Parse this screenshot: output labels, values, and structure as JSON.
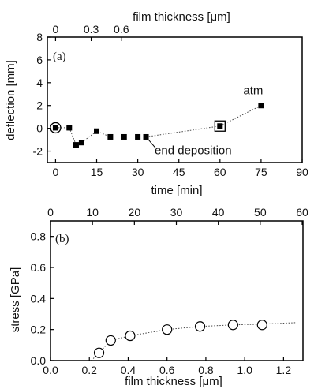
{
  "chart_data": [
    {
      "panel": "(a)",
      "type": "scatter",
      "xlabel": "time [min]",
      "ylabel": "deflection [mm]",
      "top_xlabel": "film thickness [μm]",
      "xlim": [
        -3,
        90
      ],
      "ylim": [
        -3,
        8
      ],
      "xticks": [
        0,
        15,
        30,
        45,
        60,
        75,
        90
      ],
      "yticks": [
        -2,
        0,
        2,
        4,
        6,
        8
      ],
      "top_ticks": [
        {
          "label": "0",
          "time": 0
        },
        {
          "label": "0.3",
          "time": 13
        },
        {
          "label": "0.6",
          "time": 24
        }
      ],
      "points": [
        {
          "x": 0,
          "y": 0.05
        },
        {
          "x": 5,
          "y": 0.05
        },
        {
          "x": 7.5,
          "y": -1.45
        },
        {
          "x": 9.5,
          "y": -1.25
        },
        {
          "x": 15,
          "y": -0.25
        },
        {
          "x": 20,
          "y": -0.75
        },
        {
          "x": 25,
          "y": -0.75
        },
        {
          "x": 30,
          "y": -0.75
        },
        {
          "x": 33,
          "y": -0.75
        },
        {
          "x": 60,
          "y": 0.2
        },
        {
          "x": 75,
          "y": 2.0
        }
      ],
      "highlighted_points": [
        {
          "x": 0,
          "y": 0.05,
          "marker": "circle"
        },
        {
          "x": 60,
          "y": 0.2,
          "marker": "square"
        }
      ],
      "annotations": [
        {
          "text": "end deposition",
          "x": 33,
          "y": -0.75
        },
        {
          "text": "atm",
          "x": 75,
          "y": 2.0
        }
      ]
    },
    {
      "panel": "(b)",
      "type": "scatter",
      "xlabel": "film thickness [μm]",
      "ylabel": "stress [GPa]",
      "xlim": [
        0.0,
        1.3
      ],
      "ylim": [
        0.0,
        0.9
      ],
      "xticks": [
        "0.0",
        "0.2",
        "0.4",
        "0.6",
        "0.8",
        "1.0",
        "1.2"
      ],
      "yticks": [
        "0.0",
        "0.2",
        "0.4",
        "0.6",
        "0.8"
      ],
      "top_ticks": [
        "0",
        "10",
        "20",
        "30",
        "40",
        "50",
        "60"
      ],
      "top_tick_positions": [
        0.0,
        0.216,
        0.432,
        0.648,
        0.864,
        1.08,
        1.296
      ],
      "points": [
        {
          "x": 0.25,
          "y": 0.05
        },
        {
          "x": 0.31,
          "y": 0.13
        },
        {
          "x": 0.41,
          "y": 0.16
        },
        {
          "x": 0.6,
          "y": 0.2
        },
        {
          "x": 0.77,
          "y": 0.22
        },
        {
          "x": 0.94,
          "y": 0.23
        },
        {
          "x": 1.09,
          "y": 0.23
        }
      ],
      "trend": [
        {
          "x": 0.21,
          "y": 0.0
        },
        {
          "x": 0.25,
          "y": 0.05
        },
        {
          "x": 0.31,
          "y": 0.13
        },
        {
          "x": 0.41,
          "y": 0.16
        },
        {
          "x": 0.6,
          "y": 0.2
        },
        {
          "x": 0.77,
          "y": 0.22
        },
        {
          "x": 0.94,
          "y": 0.23
        },
        {
          "x": 1.09,
          "y": 0.235
        },
        {
          "x": 1.27,
          "y": 0.245
        }
      ]
    }
  ]
}
